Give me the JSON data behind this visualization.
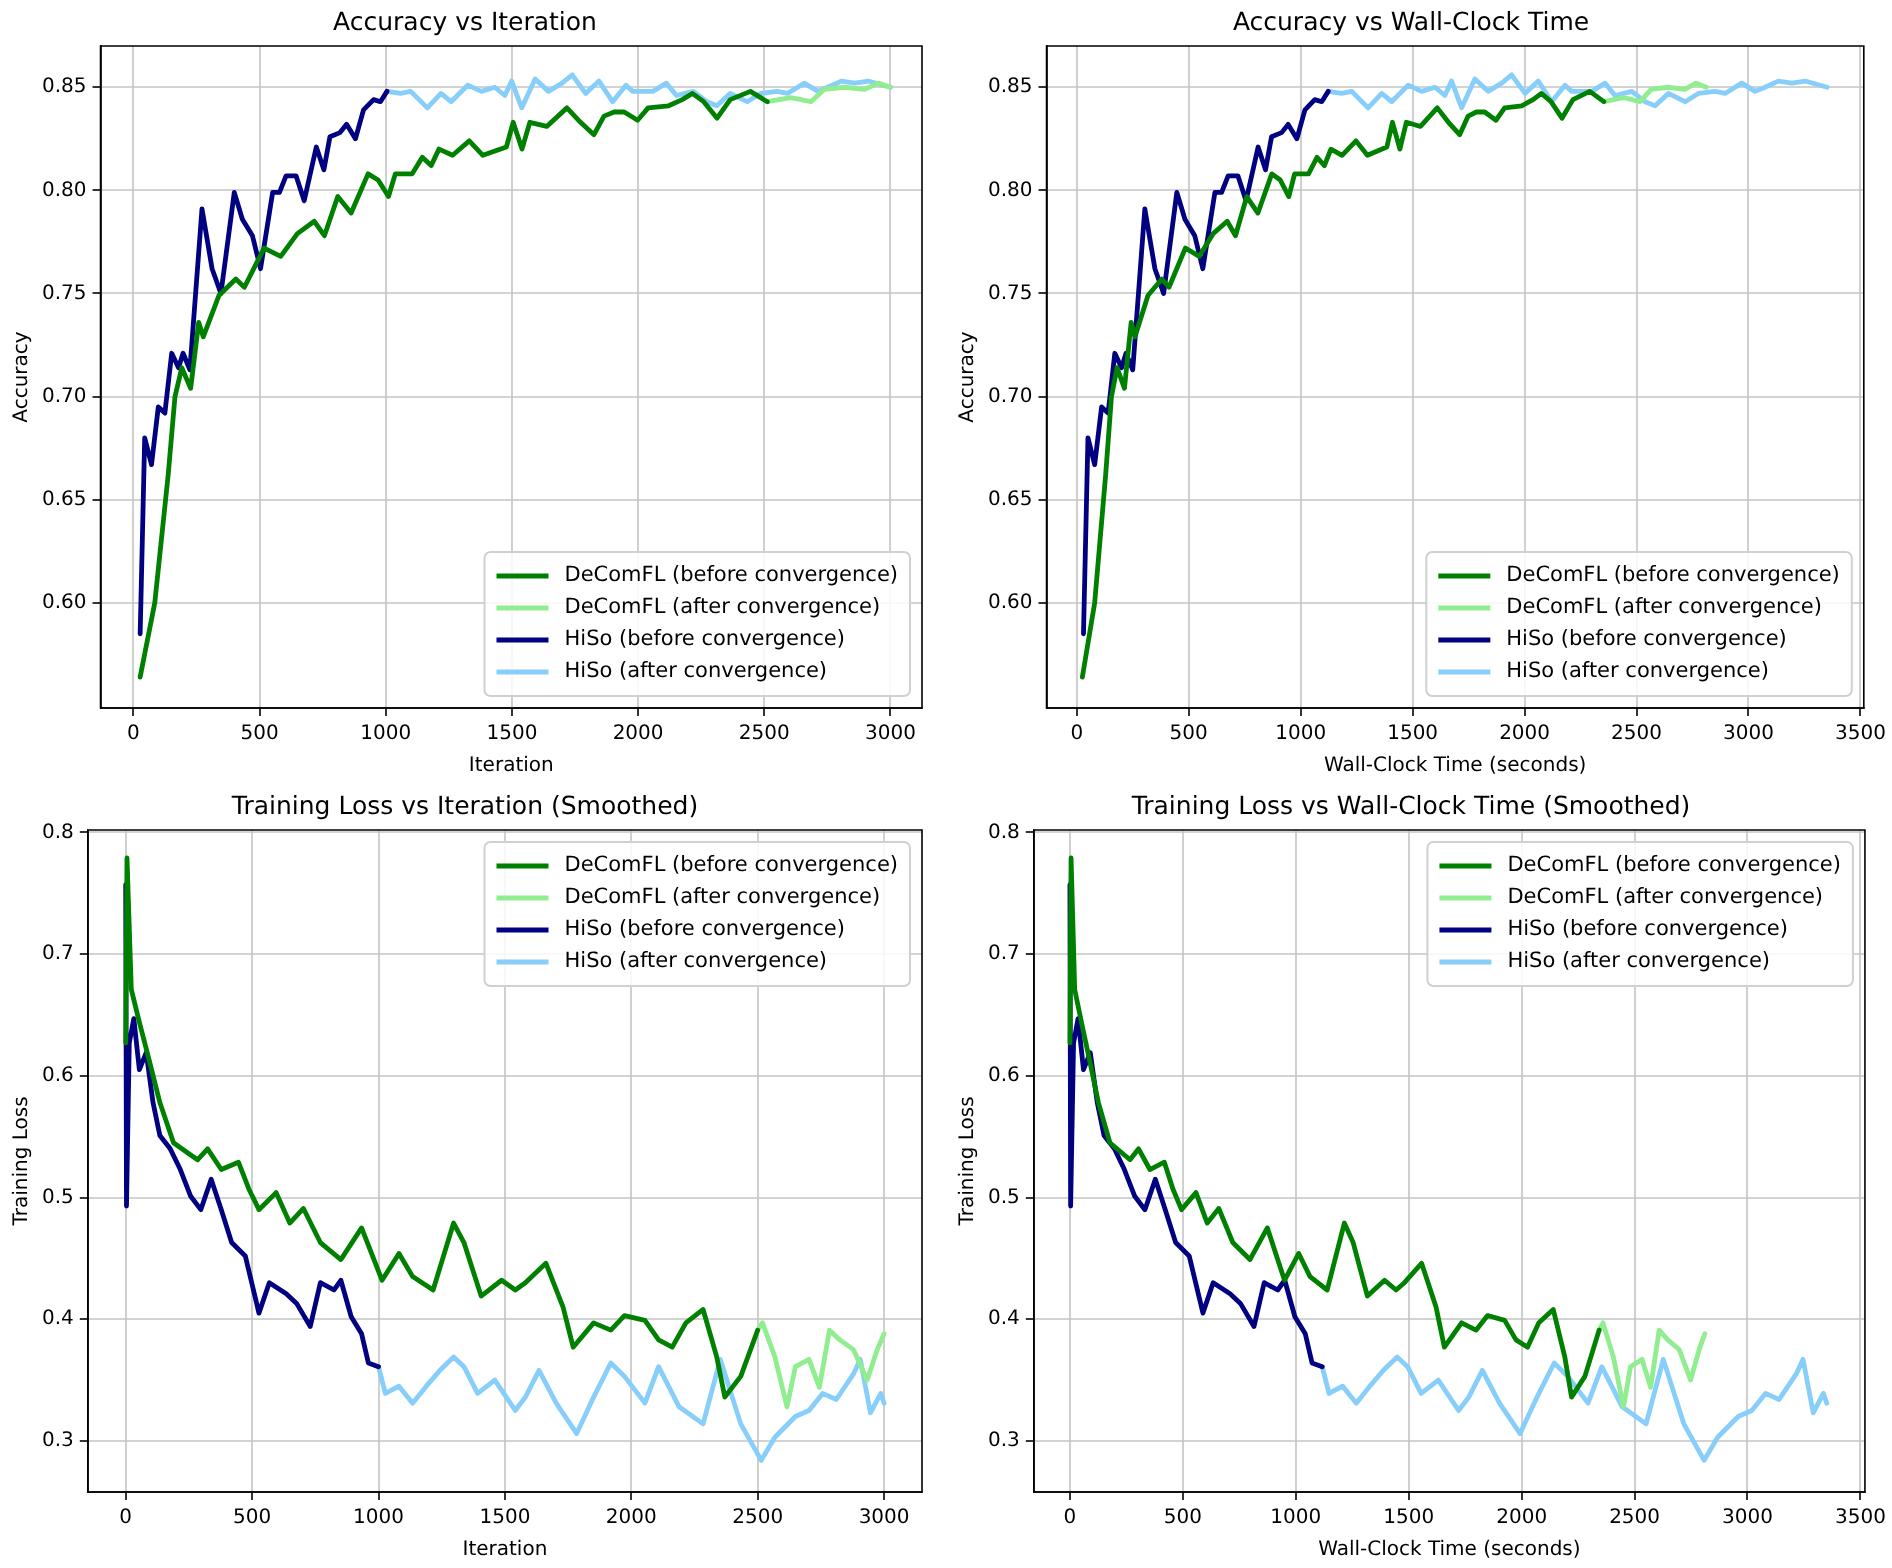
{
  "chart_data": [
    {
      "type": "line",
      "title": "Accuracy vs Iteration",
      "xlabel": "Iteration",
      "ylabel": "Accuracy",
      "xlim": [
        -130,
        3125
      ],
      "xticks": [
        0,
        500,
        1000,
        1500,
        2000,
        2500,
        3000
      ],
      "ylim": [
        0.549,
        0.87
      ],
      "yticks": [
        {
          "value": 0.6,
          "label": "0.60"
        },
        0.65,
        {
          "value": 0.7,
          "label": "0.70"
        },
        0.75,
        {
          "value": 0.8,
          "label": "0.80"
        },
        0.85
      ],
      "grid": true,
      "legend": "bottom right",
      "series": [
        {
          "name": "DeComFL (before convergence)",
          "color": "#008000",
          "x": [
            27,
            85,
            138,
            165,
            192,
            227,
            259,
            277,
            339,
            406,
            440,
            518,
            584,
            650,
            717,
            757,
            810,
            863,
            930,
            970,
            1011,
            1038,
            1105,
            1145,
            1180,
            1211,
            1265,
            1331,
            1385,
            1478,
            1505,
            1540,
            1571,
            1638,
            1718,
            1772,
            1825,
            1865,
            1905,
            1945,
            1998,
            2040,
            2121,
            2175,
            2215,
            2260,
            2313,
            2365,
            2445,
            2512
          ],
          "values": [
            0.564,
            0.6,
            0.662,
            0.7,
            0.714,
            0.704,
            0.736,
            0.729,
            0.749,
            0.757,
            0.753,
            0.772,
            0.768,
            0.779,
            0.785,
            0.778,
            0.797,
            0.789,
            0.808,
            0.805,
            0.797,
            0.808,
            0.808,
            0.816,
            0.812,
            0.82,
            0.817,
            0.824,
            0.817,
            0.821,
            0.833,
            0.82,
            0.833,
            0.831,
            0.84,
            0.833,
            0.827,
            0.836,
            0.838,
            0.838,
            0.834,
            0.84,
            0.841,
            0.844,
            0.847,
            0.843,
            0.835,
            0.844,
            0.848,
            0.843
          ]
        },
        {
          "name": "DeComFL (after convergence)",
          "color": "#90ee90",
          "x": [
            2512,
            2605,
            2685,
            2738,
            2818,
            2898,
            2952,
            3000
          ],
          "values": [
            0.843,
            0.845,
            0.843,
            0.849,
            0.85,
            0.849,
            0.852,
            0.85
          ]
        },
        {
          "name": "HiSo (before convergence)",
          "color": "#000080",
          "x": [
            27,
            45,
            72,
            99,
            125,
            152,
            179,
            197,
            224,
            272,
            312,
            347,
            400,
            432,
            472,
            504,
            552,
            579,
            605,
            645,
            677,
            725,
            755,
            779,
            819,
            845,
            880,
            912,
            952,
            979,
            1005
          ],
          "values": [
            0.585,
            0.68,
            0.667,
            0.695,
            0.692,
            0.721,
            0.714,
            0.721,
            0.713,
            0.791,
            0.762,
            0.75,
            0.799,
            0.786,
            0.778,
            0.762,
            0.799,
            0.799,
            0.807,
            0.807,
            0.795,
            0.821,
            0.81,
            0.826,
            0.828,
            0.832,
            0.825,
            0.839,
            0.844,
            0.843,
            0.848
          ]
        },
        {
          "name": "HiSo (after convergence)",
          "color": "#87cefa",
          "x": [
            1005,
            1059,
            1099,
            1165,
            1219,
            1259,
            1325,
            1379,
            1432,
            1472,
            1499,
            1539,
            1592,
            1645,
            1699,
            1739,
            1792,
            1845,
            1899,
            1952,
            1979,
            2059,
            2112,
            2152,
            2219,
            2272,
            2312,
            2365,
            2432,
            2485,
            2552,
            2592,
            2659,
            2712,
            2752,
            2805,
            2859,
            2912,
            3000
          ],
          "values": [
            0.848,
            0.847,
            0.848,
            0.84,
            0.847,
            0.843,
            0.851,
            0.848,
            0.85,
            0.846,
            0.853,
            0.84,
            0.854,
            0.848,
            0.852,
            0.856,
            0.847,
            0.853,
            0.843,
            0.851,
            0.848,
            0.848,
            0.852,
            0.846,
            0.848,
            0.843,
            0.841,
            0.847,
            0.843,
            0.847,
            0.848,
            0.847,
            0.852,
            0.848,
            0.85,
            0.853,
            0.852,
            0.853,
            0.85
          ]
        }
      ]
    },
    {
      "type": "line",
      "title": "Accuracy vs Wall-Clock Time",
      "xlabel": "Wall-Clock Time (seconds)",
      "ylabel": "Accuracy",
      "xlim": [
        -135,
        3515
      ],
      "xticks": [
        0,
        500,
        1000,
        1500,
        2000,
        2500,
        3000,
        3500
      ],
      "ylim": [
        0.549,
        0.87
      ],
      "yticks": [
        {
          "value": 0.6,
          "label": "0.60"
        },
        0.65,
        {
          "value": 0.7,
          "label": "0.70"
        },
        0.75,
        {
          "value": 0.8,
          "label": "0.80"
        },
        0.85
      ],
      "grid": true,
      "legend": "bottom right",
      "series": [
        {
          "name": "DeComFL (before convergence)",
          "color": "#008000",
          "x": [
            25,
            80,
            129,
            155,
            180,
            213,
            243,
            260,
            318,
            380,
            412,
            485,
            547,
            609,
            672,
            709,
            759,
            809,
            871,
            909,
            947,
            973,
            1035,
            1073,
            1106,
            1135,
            1185,
            1247,
            1298,
            1385,
            1410,
            1443,
            1472,
            1535,
            1610,
            1660,
            1710,
            1748,
            1785,
            1822,
            1872,
            1911,
            1987,
            2038,
            2075,
            2118,
            2167,
            2216,
            2291,
            2354
          ],
          "values": [
            0.564,
            0.6,
            0.662,
            0.7,
            0.714,
            0.704,
            0.736,
            0.729,
            0.749,
            0.757,
            0.753,
            0.772,
            0.768,
            0.779,
            0.785,
            0.778,
            0.797,
            0.789,
            0.808,
            0.805,
            0.797,
            0.808,
            0.808,
            0.816,
            0.812,
            0.82,
            0.817,
            0.824,
            0.817,
            0.821,
            0.833,
            0.82,
            0.833,
            0.831,
            0.84,
            0.833,
            0.827,
            0.836,
            0.838,
            0.838,
            0.834,
            0.84,
            0.841,
            0.844,
            0.847,
            0.843,
            0.835,
            0.844,
            0.848,
            0.843
          ]
        },
        {
          "name": "DeComFL (after convergence)",
          "color": "#90ee90",
          "x": [
            2354,
            2441,
            2516,
            2565,
            2640,
            2715,
            2766,
            2811
          ],
          "values": [
            0.843,
            0.845,
            0.843,
            0.849,
            0.85,
            0.849,
            0.852,
            0.85
          ]
        },
        {
          "name": "HiSo (before convergence)",
          "color": "#000080",
          "x": [
            30,
            50,
            80,
            111,
            140,
            170,
            200,
            220,
            250,
            304,
            349,
            388,
            447,
            483,
            527,
            563,
            617,
            647,
            676,
            720,
            756,
            810,
            843,
            870,
            915,
            944,
            983,
            1019,
            1063,
            1094,
            1123
          ],
          "values": [
            0.585,
            0.68,
            0.667,
            0.695,
            0.692,
            0.721,
            0.714,
            0.721,
            0.713,
            0.791,
            0.762,
            0.75,
            0.799,
            0.786,
            0.778,
            0.762,
            0.799,
            0.799,
            0.807,
            0.807,
            0.795,
            0.821,
            0.81,
            0.826,
            0.828,
            0.832,
            0.825,
            0.839,
            0.844,
            0.843,
            0.848
          ]
        },
        {
          "name": "HiSo (after convergence)",
          "color": "#87cefa",
          "x": [
            1123,
            1183,
            1228,
            1301,
            1362,
            1406,
            1480,
            1540,
            1600,
            1644,
            1674,
            1719,
            1778,
            1837,
            1898,
            1942,
            2002,
            2061,
            2121,
            2180,
            2211,
            2300,
            2359,
            2404,
            2479,
            2538,
            2583,
            2642,
            2717,
            2776,
            2851,
            2895,
            2970,
            3029,
            3074,
            3133,
            3194,
            3253,
            3351
          ],
          "values": [
            0.848,
            0.847,
            0.848,
            0.84,
            0.847,
            0.843,
            0.851,
            0.848,
            0.85,
            0.846,
            0.853,
            0.84,
            0.854,
            0.848,
            0.852,
            0.856,
            0.847,
            0.853,
            0.843,
            0.851,
            0.848,
            0.848,
            0.852,
            0.846,
            0.848,
            0.843,
            0.841,
            0.847,
            0.843,
            0.847,
            0.848,
            0.847,
            0.852,
            0.848,
            0.85,
            0.853,
            0.852,
            0.853,
            0.85
          ]
        }
      ]
    },
    {
      "type": "line",
      "title": "Training Loss vs Iteration (Smoothed)",
      "xlabel": "Iteration",
      "ylabel": "Training Loss",
      "xlim": [
        -150,
        3150
      ],
      "xticks": [
        0,
        500,
        1000,
        1500,
        2000,
        2500,
        3000
      ],
      "ylim": [
        0.258,
        0.802
      ],
      "yticks": [
        0.3,
        0.4,
        0.5,
        0.6,
        0.7,
        0.8
      ],
      "grid": true,
      "legend": "top right",
      "series": [
        {
          "name": "DeComFL (before convergence)",
          "color": "#008000",
          "x": [
            0,
            5,
            22,
            54,
            95,
            135,
            189,
            243,
            284,
            324,
            378,
            446,
            487,
            527,
            595,
            649,
            703,
            770,
            851,
            933,
            1014,
            1081,
            1135,
            1216,
            1297,
            1338,
            1406,
            1487,
            1541,
            1581,
            1662,
            1730,
            1770,
            1851,
            1919,
            1973,
            2054,
            2108,
            2162,
            2216,
            2284,
            2338,
            2370,
            2433,
            2500
          ],
          "values": [
            0.627,
            0.779,
            0.671,
            0.644,
            0.611,
            0.578,
            0.545,
            0.537,
            0.531,
            0.54,
            0.523,
            0.529,
            0.507,
            0.49,
            0.504,
            0.479,
            0.491,
            0.463,
            0.449,
            0.475,
            0.432,
            0.454,
            0.435,
            0.424,
            0.479,
            0.463,
            0.419,
            0.432,
            0.424,
            0.43,
            0.446,
            0.41,
            0.377,
            0.397,
            0.391,
            0.403,
            0.399,
            0.383,
            0.377,
            0.397,
            0.408,
            0.369,
            0.336,
            0.353,
            0.391
          ]
        },
        {
          "name": "DeComFL (after convergence)",
          "color": "#90ee90",
          "x": [
            2500,
            2519,
            2568,
            2616,
            2649,
            2703,
            2744,
            2784,
            2825,
            2879,
            2933,
            2973,
            3000
          ],
          "values": [
            0.391,
            0.397,
            0.369,
            0.328,
            0.361,
            0.367,
            0.344,
            0.391,
            0.383,
            0.375,
            0.35,
            0.375,
            0.388
          ]
        },
        {
          "name": "HiSo (before convergence)",
          "color": "#000080",
          "x": [
            0,
            3,
            14,
            32,
            54,
            81,
            108,
            135,
            176,
            216,
            257,
            297,
            338,
            378,
            419,
            473,
            527,
            568,
            635,
            676,
            730,
            770,
            824,
            851,
            892,
            933,
            960,
            1000
          ],
          "values": [
            0.757,
            0.493,
            0.627,
            0.647,
            0.605,
            0.619,
            0.578,
            0.551,
            0.54,
            0.523,
            0.501,
            0.49,
            0.515,
            0.49,
            0.463,
            0.452,
            0.405,
            0.43,
            0.421,
            0.413,
            0.394,
            0.43,
            0.424,
            0.432,
            0.402,
            0.388,
            0.364,
            0.361
          ]
        },
        {
          "name": "HiSo (after convergence)",
          "color": "#87cefa",
          "x": [
            1000,
            1027,
            1081,
            1135,
            1189,
            1243,
            1297,
            1338,
            1392,
            1460,
            1541,
            1581,
            1635,
            1703,
            1784,
            1851,
            1919,
            1973,
            2054,
            2108,
            2189,
            2284,
            2352,
            2433,
            2514,
            2568,
            2649,
            2703,
            2757,
            2811,
            2879,
            2906,
            2946,
            2987,
            3000
          ],
          "values": [
            0.361,
            0.339,
            0.345,
            0.331,
            0.345,
            0.358,
            0.369,
            0.361,
            0.339,
            0.35,
            0.325,
            0.336,
            0.358,
            0.331,
            0.306,
            0.336,
            0.364,
            0.353,
            0.331,
            0.361,
            0.328,
            0.314,
            0.367,
            0.314,
            0.284,
            0.303,
            0.32,
            0.325,
            0.339,
            0.334,
            0.355,
            0.367,
            0.323,
            0.339,
            0.331
          ]
        }
      ]
    },
    {
      "type": "line",
      "title": "Training Loss vs Wall-Clock Time (Smoothed)",
      "xlabel": "Wall-Clock Time (seconds)",
      "ylabel": "Training Loss",
      "xlim": [
        -160,
        3520
      ],
      "xticks": [
        0,
        500,
        1000,
        1500,
        2000,
        2500,
        3000,
        3500
      ],
      "ylim": [
        0.258,
        0.802
      ],
      "yticks": [
        0.3,
        0.4,
        0.5,
        0.6,
        0.7,
        0.8
      ],
      "grid": true,
      "legend": "top right",
      "series": [
        {
          "name": "DeComFL (before convergence)",
          "color": "#008000",
          "x": [
            0,
            5,
            21,
            51,
            89,
            126,
            177,
            228,
            266,
            304,
            354,
            418,
            456,
            494,
            558,
            608,
            659,
            721,
            797,
            874,
            950,
            1013,
            1063,
            1139,
            1215,
            1254,
            1317,
            1393,
            1444,
            1481,
            1557,
            1621,
            1658,
            1734,
            1798,
            1849,
            1925,
            1975,
            2026,
            2076,
            2140,
            2191,
            2221,
            2280,
            2343
          ],
          "values": [
            0.627,
            0.779,
            0.671,
            0.644,
            0.611,
            0.578,
            0.545,
            0.537,
            0.531,
            0.54,
            0.523,
            0.529,
            0.507,
            0.49,
            0.504,
            0.479,
            0.491,
            0.463,
            0.449,
            0.475,
            0.432,
            0.454,
            0.435,
            0.424,
            0.479,
            0.463,
            0.419,
            0.432,
            0.424,
            0.43,
            0.446,
            0.41,
            0.377,
            0.397,
            0.391,
            0.403,
            0.399,
            0.383,
            0.377,
            0.397,
            0.408,
            0.369,
            0.336,
            0.353,
            0.391
          ]
        },
        {
          "name": "DeComFL (after convergence)",
          "color": "#90ee90",
          "x": [
            2343,
            2360,
            2406,
            2451,
            2482,
            2533,
            2571,
            2609,
            2647,
            2698,
            2748,
            2786,
            2811
          ],
          "values": [
            0.391,
            0.397,
            0.369,
            0.328,
            0.361,
            0.367,
            0.344,
            0.391,
            0.383,
            0.375,
            0.35,
            0.375,
            0.388
          ]
        },
        {
          "name": "HiSo (before convergence)",
          "color": "#000080",
          "x": [
            0,
            3,
            16,
            36,
            60,
            90,
            121,
            151,
            197,
            241,
            287,
            332,
            378,
            422,
            468,
            528,
            589,
            634,
            709,
            755,
            815,
            860,
            920,
            951,
            996,
            1042,
            1072,
            1117
          ],
          "values": [
            0.757,
            0.493,
            0.627,
            0.647,
            0.605,
            0.619,
            0.578,
            0.551,
            0.54,
            0.523,
            0.501,
            0.49,
            0.515,
            0.49,
            0.463,
            0.452,
            0.405,
            0.43,
            0.421,
            0.413,
            0.394,
            0.43,
            0.424,
            0.432,
            0.402,
            0.388,
            0.364,
            0.361
          ]
        },
        {
          "name": "HiSo (after convergence)",
          "color": "#87cefa",
          "x": [
            1117,
            1147,
            1207,
            1268,
            1328,
            1388,
            1449,
            1495,
            1555,
            1631,
            1721,
            1766,
            1826,
            1902,
            1993,
            2068,
            2144,
            2204,
            2294,
            2355,
            2445,
            2551,
            2627,
            2718,
            2808,
            2868,
            2959,
            3019,
            3080,
            3140,
            3216,
            3246,
            3291,
            3336,
            3351
          ],
          "values": [
            0.361,
            0.339,
            0.345,
            0.331,
            0.345,
            0.358,
            0.369,
            0.361,
            0.339,
            0.35,
            0.325,
            0.336,
            0.358,
            0.331,
            0.306,
            0.336,
            0.364,
            0.353,
            0.331,
            0.361,
            0.328,
            0.314,
            0.367,
            0.314,
            0.284,
            0.303,
            0.32,
            0.325,
            0.339,
            0.334,
            0.355,
            0.367,
            0.323,
            0.339,
            0.331
          ]
        }
      ]
    }
  ]
}
